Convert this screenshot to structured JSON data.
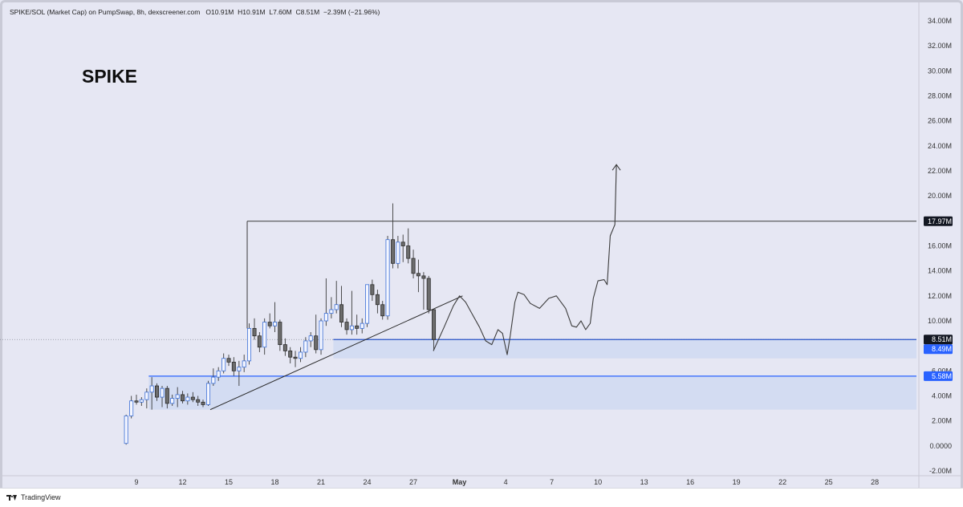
{
  "header": {
    "symbol": "SPIKE/SOL (Market Cap) on PumpSwap, 8h, dexscreener.com",
    "open": "O10.91M",
    "high": "H10.91M",
    "low": "L7.60M",
    "close": "C8.51M",
    "change": "−2.39M (−21.96%)"
  },
  "big_title": "SPIKE",
  "footer": {
    "brand": "TradingView"
  },
  "price_badges": [
    {
      "value": 17.97,
      "label": "17.97M",
      "bg": "#131722",
      "fg": "#ffffff"
    },
    {
      "value": 8.51,
      "label": "8.51M",
      "bg": "#131722",
      "fg": "#ffffff"
    },
    {
      "value": 8.49,
      "label": "8.49M",
      "bg": "#2962ff",
      "fg": "#ffffff"
    },
    {
      "value": 5.58,
      "label": "5.58M",
      "bg": "#2962ff",
      "fg": "#ffffff"
    }
  ],
  "chart_data": {
    "type": "candlestick",
    "y_unit": "M",
    "ylim": [
      -2,
      34
    ],
    "y_ticks": [
      -2,
      0,
      2,
      4,
      6,
      8,
      10,
      12,
      14,
      16,
      18,
      20,
      22,
      24,
      26,
      28,
      30,
      32,
      34
    ],
    "y_tick_labels": [
      "-2.00M",
      "0.0000",
      "2.00M",
      "4.00M",
      "6.00M",
      "8.00M",
      "10.00M",
      "12.00M",
      "14.00M",
      "16.00M",
      "18.00M",
      "20.00M",
      "22.00M",
      "24.00M",
      "26.00M",
      "28.00M",
      "30.00M",
      "32.00M",
      "34.00M"
    ],
    "x_tick_labels": [
      {
        "day": 9,
        "label": "9"
      },
      {
        "day": 12,
        "label": "12"
      },
      {
        "day": 15,
        "label": "15"
      },
      {
        "day": 18,
        "label": "18"
      },
      {
        "day": 21,
        "label": "21"
      },
      {
        "day": 24,
        "label": "24"
      },
      {
        "day": 27,
        "label": "27"
      },
      {
        "day": 30,
        "label": "May"
      },
      {
        "day": 33,
        "label": "4"
      },
      {
        "day": 36,
        "label": "7"
      },
      {
        "day": 39,
        "label": "10"
      },
      {
        "day": 42,
        "label": "13"
      },
      {
        "day": 45,
        "label": "16"
      },
      {
        "day": 48,
        "label": "19"
      },
      {
        "day": 51,
        "label": "22"
      },
      {
        "day": 54,
        "label": "25"
      },
      {
        "day": 57,
        "label": "28"
      }
    ],
    "candles": [
      {
        "t": 8.33,
        "o": 0.2,
        "h": 2.5,
        "l": 0.1,
        "c": 2.4
      },
      {
        "t": 8.67,
        "o": 2.4,
        "h": 4.0,
        "l": 2.2,
        "c": 3.6
      },
      {
        "t": 9.0,
        "o": 3.6,
        "h": 4.1,
        "l": 3.3,
        "c": 3.5
      },
      {
        "t": 9.33,
        "o": 3.5,
        "h": 3.9,
        "l": 3.2,
        "c": 3.7
      },
      {
        "t": 9.67,
        "o": 3.7,
        "h": 4.6,
        "l": 3.0,
        "c": 4.3
      },
      {
        "t": 10.0,
        "o": 4.3,
        "h": 5.5,
        "l": 2.9,
        "c": 4.8
      },
      {
        "t": 10.33,
        "o": 4.8,
        "h": 5.0,
        "l": 3.6,
        "c": 3.9
      },
      {
        "t": 10.67,
        "o": 3.9,
        "h": 4.8,
        "l": 3.1,
        "c": 4.6
      },
      {
        "t": 11.0,
        "o": 4.6,
        "h": 4.8,
        "l": 3.0,
        "c": 3.4
      },
      {
        "t": 11.33,
        "o": 3.4,
        "h": 4.1,
        "l": 3.2,
        "c": 3.8
      },
      {
        "t": 11.67,
        "o": 3.8,
        "h": 4.7,
        "l": 3.1,
        "c": 4.1
      },
      {
        "t": 12.0,
        "o": 4.1,
        "h": 4.4,
        "l": 3.4,
        "c": 3.6
      },
      {
        "t": 12.33,
        "o": 3.6,
        "h": 4.2,
        "l": 3.3,
        "c": 3.9
      },
      {
        "t": 12.67,
        "o": 3.9,
        "h": 4.3,
        "l": 3.5,
        "c": 3.7
      },
      {
        "t": 13.0,
        "o": 3.7,
        "h": 4.0,
        "l": 3.2,
        "c": 3.5
      },
      {
        "t": 13.33,
        "o": 3.5,
        "h": 3.7,
        "l": 3.1,
        "c": 3.3
      },
      {
        "t": 13.67,
        "o": 3.3,
        "h": 5.2,
        "l": 3.2,
        "c": 5.0
      },
      {
        "t": 14.0,
        "o": 5.0,
        "h": 6.2,
        "l": 4.8,
        "c": 5.5
      },
      {
        "t": 14.33,
        "o": 5.5,
        "h": 6.3,
        "l": 5.2,
        "c": 6.0
      },
      {
        "t": 14.67,
        "o": 6.0,
        "h": 7.4,
        "l": 5.8,
        "c": 7.0
      },
      {
        "t": 15.0,
        "o": 7.0,
        "h": 7.3,
        "l": 6.4,
        "c": 6.7
      },
      {
        "t": 15.33,
        "o": 6.7,
        "h": 7.1,
        "l": 5.6,
        "c": 6.0
      },
      {
        "t": 15.67,
        "o": 6.0,
        "h": 6.8,
        "l": 4.8,
        "c": 6.3
      },
      {
        "t": 16.0,
        "o": 6.3,
        "h": 7.3,
        "l": 5.9,
        "c": 6.8
      },
      {
        "t": 16.33,
        "o": 6.8,
        "h": 9.8,
        "l": 6.5,
        "c": 9.4
      },
      {
        "t": 16.67,
        "o": 9.4,
        "h": 10.2,
        "l": 8.5,
        "c": 8.8
      },
      {
        "t": 17.0,
        "o": 8.8,
        "h": 9.1,
        "l": 7.5,
        "c": 7.9
      },
      {
        "t": 17.33,
        "o": 7.9,
        "h": 10.2,
        "l": 7.3,
        "c": 9.9
      },
      {
        "t": 17.67,
        "o": 9.9,
        "h": 10.6,
        "l": 9.4,
        "c": 9.6
      },
      {
        "t": 18.0,
        "o": 9.6,
        "h": 11.5,
        "l": 9.1,
        "c": 9.9
      },
      {
        "t": 18.33,
        "o": 9.9,
        "h": 10.1,
        "l": 7.6,
        "c": 8.1
      },
      {
        "t": 18.67,
        "o": 8.1,
        "h": 8.6,
        "l": 7.2,
        "c": 7.6
      },
      {
        "t": 19.0,
        "o": 7.6,
        "h": 7.9,
        "l": 6.6,
        "c": 7.1
      },
      {
        "t": 19.33,
        "o": 7.1,
        "h": 7.6,
        "l": 6.3,
        "c": 7.0
      },
      {
        "t": 19.67,
        "o": 7.0,
        "h": 7.9,
        "l": 6.7,
        "c": 7.5
      },
      {
        "t": 20.0,
        "o": 7.5,
        "h": 8.7,
        "l": 7.1,
        "c": 8.4
      },
      {
        "t": 20.33,
        "o": 8.4,
        "h": 9.1,
        "l": 7.9,
        "c": 8.8
      },
      {
        "t": 20.67,
        "o": 8.8,
        "h": 10.5,
        "l": 7.4,
        "c": 7.7
      },
      {
        "t": 21.0,
        "o": 7.7,
        "h": 10.2,
        "l": 7.3,
        "c": 10.0
      },
      {
        "t": 21.33,
        "o": 10.0,
        "h": 13.4,
        "l": 9.6,
        "c": 10.6
      },
      {
        "t": 21.67,
        "o": 10.6,
        "h": 11.9,
        "l": 10.2,
        "c": 10.9
      },
      {
        "t": 22.0,
        "o": 10.9,
        "h": 13.2,
        "l": 10.6,
        "c": 11.3
      },
      {
        "t": 22.33,
        "o": 11.3,
        "h": 12.8,
        "l": 9.5,
        "c": 9.9
      },
      {
        "t": 22.67,
        "o": 9.9,
        "h": 10.2,
        "l": 8.9,
        "c": 9.3
      },
      {
        "t": 23.0,
        "o": 9.3,
        "h": 12.4,
        "l": 8.9,
        "c": 9.6
      },
      {
        "t": 23.33,
        "o": 9.6,
        "h": 10.5,
        "l": 8.9,
        "c": 9.4
      },
      {
        "t": 23.67,
        "o": 9.4,
        "h": 10.2,
        "l": 9.0,
        "c": 9.8
      },
      {
        "t": 24.0,
        "o": 9.8,
        "h": 12.6,
        "l": 9.5,
        "c": 12.9
      },
      {
        "t": 24.33,
        "o": 12.9,
        "h": 13.3,
        "l": 11.6,
        "c": 12.1
      },
      {
        "t": 24.67,
        "o": 12.1,
        "h": 12.5,
        "l": 10.6,
        "c": 11.3
      },
      {
        "t": 25.0,
        "o": 11.3,
        "h": 11.6,
        "l": 10.1,
        "c": 10.4
      },
      {
        "t": 25.33,
        "o": 10.4,
        "h": 16.8,
        "l": 10.1,
        "c": 16.5
      },
      {
        "t": 25.67,
        "o": 16.5,
        "h": 19.4,
        "l": 14.2,
        "c": 14.6
      },
      {
        "t": 26.0,
        "o": 14.6,
        "h": 16.8,
        "l": 14.2,
        "c": 16.3
      },
      {
        "t": 26.33,
        "o": 16.3,
        "h": 16.9,
        "l": 14.7,
        "c": 16.0
      },
      {
        "t": 26.67,
        "o": 16.0,
        "h": 17.4,
        "l": 14.6,
        "c": 15.0
      },
      {
        "t": 27.0,
        "o": 15.0,
        "h": 15.7,
        "l": 13.4,
        "c": 13.8
      },
      {
        "t": 27.33,
        "o": 13.8,
        "h": 14.9,
        "l": 12.3,
        "c": 13.6
      },
      {
        "t": 27.67,
        "o": 13.6,
        "h": 13.9,
        "l": 10.9,
        "c": 13.4
      },
      {
        "t": 28.0,
        "o": 13.4,
        "h": 13.6,
        "l": 10.6,
        "c": 10.9
      },
      {
        "t": 28.33,
        "o": 10.9,
        "h": 10.9,
        "l": 7.6,
        "c": 8.51
      }
    ],
    "drawings": {
      "resistance_level": {
        "value": 17.97,
        "from_day": 16.2
      },
      "support_top_level": {
        "value": 8.51,
        "from_day": 21.8
      },
      "support_bottom_level": {
        "value": 8.49
      },
      "zone_upper": {
        "top": 8.51,
        "bottom": 7.0,
        "from_day": 21.8
      },
      "zone_lower": {
        "top": 5.58,
        "bottom": 2.9,
        "from_day": 9.8
      },
      "zone_lower_level": {
        "value": 5.58,
        "from_day": 9.8
      },
      "trendline": [
        [
          13.8,
          2.9
        ],
        [
          30.2,
          12.0
        ]
      ],
      "projection_path": [
        [
          28.3,
          7.6
        ],
        [
          29.0,
          9.5
        ],
        [
          29.6,
          11.2
        ],
        [
          30.0,
          12.0
        ],
        [
          30.4,
          11.5
        ],
        [
          30.8,
          10.6
        ],
        [
          31.3,
          9.5
        ],
        [
          31.7,
          8.4
        ],
        [
          32.1,
          8.1
        ],
        [
          32.5,
          9.3
        ],
        [
          32.8,
          9.0
        ],
        [
          33.1,
          7.3
        ],
        [
          33.3,
          8.8
        ],
        [
          33.6,
          11.5
        ],
        [
          33.8,
          12.3
        ],
        [
          34.2,
          12.1
        ],
        [
          34.6,
          11.4
        ],
        [
          35.2,
          11.0
        ],
        [
          35.8,
          11.8
        ],
        [
          36.3,
          12.0
        ],
        [
          36.9,
          11.0
        ],
        [
          37.3,
          9.6
        ],
        [
          37.6,
          9.5
        ],
        [
          37.9,
          10.0
        ],
        [
          38.2,
          9.3
        ],
        [
          38.5,
          9.8
        ],
        [
          38.7,
          11.8
        ],
        [
          39.0,
          13.2
        ],
        [
          39.4,
          13.3
        ],
        [
          39.6,
          12.9
        ],
        [
          39.8,
          16.8
        ],
        [
          40.1,
          17.7
        ],
        [
          40.2,
          22.5
        ]
      ]
    }
  }
}
